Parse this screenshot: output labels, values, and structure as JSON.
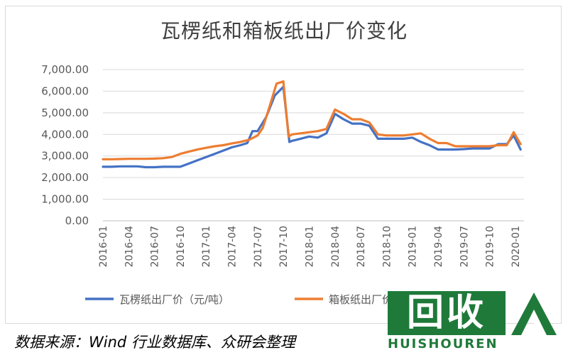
{
  "chart_data": {
    "type": "line",
    "title": "瓦楞纸和箱板纸出厂价变化",
    "ylim": [
      0,
      7000
    ],
    "yticks": [
      "0.00",
      "1,000.00",
      "2,000.00",
      "3,000.00",
      "4,000.00",
      "5,000.00",
      "6,000.00",
      "7,000.00"
    ],
    "xticks": [
      "2016-01",
      "2016-04",
      "2016-07",
      "2016-10",
      "2017-01",
      "2017-04",
      "2017-07",
      "2017-10",
      "2018-01",
      "2018-04",
      "2018-07",
      "2018-10",
      "2019-01",
      "2019-04",
      "2019-07",
      "2019-10",
      "2020-01"
    ],
    "grid": true,
    "legend_position": "bottom",
    "series": [
      {
        "name": "瓦楞纸出厂价（元/吨）",
        "color": "#4472c4",
        "points": [
          [
            0,
            2500
          ],
          [
            1,
            2500
          ],
          [
            2,
            2520
          ],
          [
            3,
            2520
          ],
          [
            4,
            2520
          ],
          [
            5,
            2480
          ],
          [
            6,
            2480
          ],
          [
            7,
            2500
          ],
          [
            8,
            2500
          ],
          [
            9,
            2500
          ],
          [
            10,
            2650
          ],
          [
            11,
            2800
          ],
          [
            12,
            2950
          ],
          [
            13,
            3100
          ],
          [
            14,
            3250
          ],
          [
            15,
            3400
          ],
          [
            16,
            3500
          ],
          [
            16.8,
            3600
          ],
          [
            17.4,
            4150
          ],
          [
            18,
            4150
          ],
          [
            19,
            4800
          ],
          [
            20,
            5800
          ],
          [
            21,
            6200
          ],
          [
            21.7,
            3650
          ],
          [
            22,
            3700
          ],
          [
            23,
            3800
          ],
          [
            24,
            3900
          ],
          [
            25,
            3850
          ],
          [
            26,
            4050
          ],
          [
            27,
            4950
          ],
          [
            28,
            4700
          ],
          [
            29,
            4500
          ],
          [
            30,
            4500
          ],
          [
            31,
            4400
          ],
          [
            32,
            3800
          ],
          [
            33,
            3800
          ],
          [
            34,
            3800
          ],
          [
            35,
            3800
          ],
          [
            36,
            3850
          ],
          [
            37,
            3650
          ],
          [
            38,
            3500
          ],
          [
            39,
            3300
          ],
          [
            40,
            3300
          ],
          [
            41,
            3300
          ],
          [
            42,
            3320
          ],
          [
            43,
            3350
          ],
          [
            44,
            3350
          ],
          [
            45,
            3350
          ],
          [
            46,
            3550
          ],
          [
            47,
            3550
          ],
          [
            47.8,
            3950
          ],
          [
            48.6,
            3300
          ]
        ]
      },
      {
        "name": "箱板纸出厂价（元/吨）",
        "color": "#ed7d31",
        "points": [
          [
            0,
            2850
          ],
          [
            1,
            2850
          ],
          [
            2,
            2860
          ],
          [
            3,
            2870
          ],
          [
            4,
            2870
          ],
          [
            5,
            2870
          ],
          [
            6,
            2880
          ],
          [
            7,
            2900
          ],
          [
            8,
            2950
          ],
          [
            9,
            3100
          ],
          [
            10,
            3200
          ],
          [
            11,
            3300
          ],
          [
            12,
            3380
          ],
          [
            13,
            3450
          ],
          [
            14,
            3500
          ],
          [
            15,
            3580
          ],
          [
            16,
            3650
          ],
          [
            17,
            3750
          ],
          [
            18,
            3950
          ],
          [
            18.6,
            4300
          ],
          [
            19.4,
            5300
          ],
          [
            20.2,
            6350
          ],
          [
            21,
            6450
          ],
          [
            21.6,
            3900
          ],
          [
            22,
            4000
          ],
          [
            23,
            4050
          ],
          [
            24,
            4100
          ],
          [
            25,
            4150
          ],
          [
            26,
            4250
          ],
          [
            27,
            5150
          ],
          [
            28,
            4950
          ],
          [
            29,
            4700
          ],
          [
            30,
            4700
          ],
          [
            31,
            4550
          ],
          [
            32,
            4000
          ],
          [
            33,
            3950
          ],
          [
            34,
            3950
          ],
          [
            35,
            3950
          ],
          [
            36,
            4000
          ],
          [
            37,
            4050
          ],
          [
            38,
            3800
          ],
          [
            39,
            3600
          ],
          [
            40,
            3600
          ],
          [
            41,
            3450
          ],
          [
            42,
            3450
          ],
          [
            43,
            3450
          ],
          [
            44,
            3450
          ],
          [
            45,
            3450
          ],
          [
            46,
            3500
          ],
          [
            47,
            3500
          ],
          [
            47.8,
            4100
          ],
          [
            48.6,
            3550
          ]
        ]
      }
    ]
  },
  "source_text": "数据来源：Wind 行业数据库、众研会整理",
  "watermark": {
    "badge_text": "回收",
    "text": "HUISHOUREN",
    "color": "#1f7a3a"
  }
}
